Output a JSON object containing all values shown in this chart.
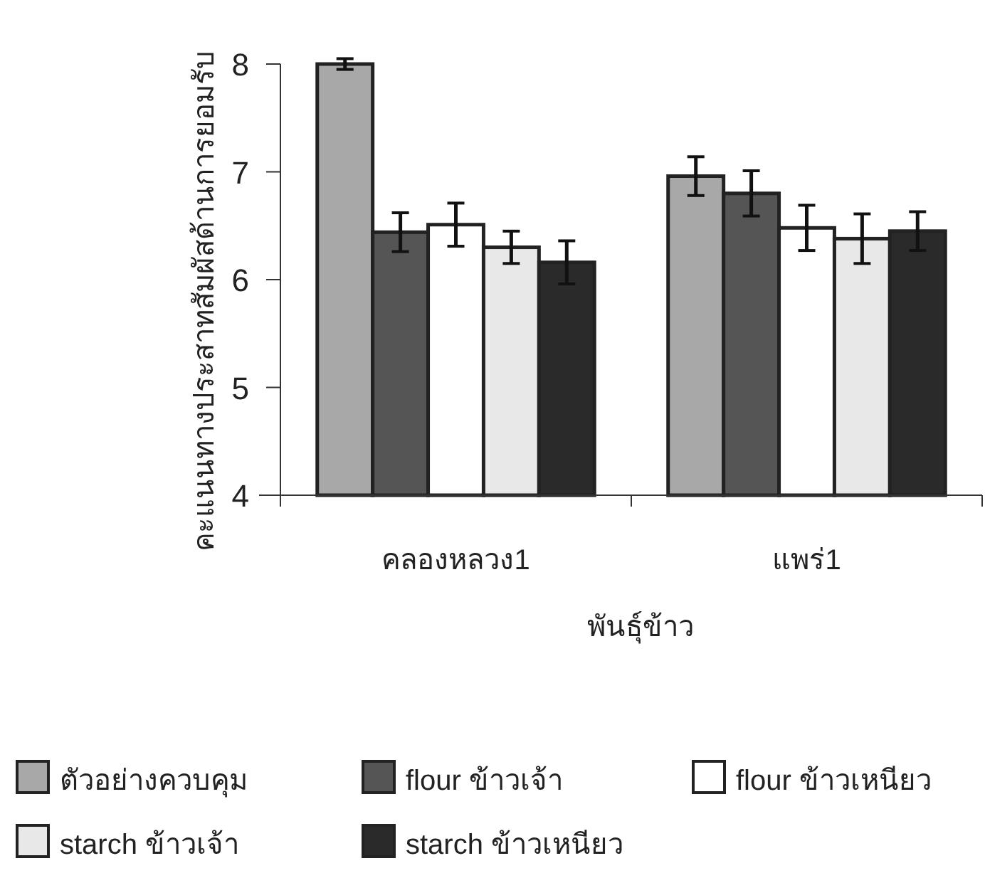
{
  "chart_data": {
    "type": "bar",
    "xlabel": "พันธุ์ข้าว",
    "ylabel": "คะแนนทางประสาทสัมผัสด้านการยอมรับ",
    "categories": [
      "คลองหลวง1",
      "แพร่1"
    ],
    "series": [
      {
        "name": "ตัวอย่างควบคุม",
        "color": "#a8a8a8",
        "values": [
          8.0,
          6.96
        ],
        "errors": [
          0.05,
          0.18
        ]
      },
      {
        "name": "flour ข้าวเจ้า",
        "color": "#555555",
        "values": [
          6.44,
          6.8
        ],
        "errors": [
          0.18,
          0.21
        ]
      },
      {
        "name": "flour ข้าวเหนียว",
        "color": "#ffffff",
        "values": [
          6.51,
          6.48
        ],
        "errors": [
          0.2,
          0.21
        ]
      },
      {
        "name": "starch ข้าวเจ้า",
        "color": "#e8e8e8",
        "values": [
          6.3,
          6.38
        ],
        "errors": [
          0.15,
          0.23
        ]
      },
      {
        "name": "starch ข้าวเหนียว",
        "color": "#2a2a2a",
        "values": [
          6.16,
          6.45
        ],
        "errors": [
          0.2,
          0.18
        ]
      }
    ],
    "ylim": [
      4,
      8
    ],
    "yticks": [
      4,
      5,
      6,
      7,
      8
    ],
    "legend": "bottom"
  }
}
